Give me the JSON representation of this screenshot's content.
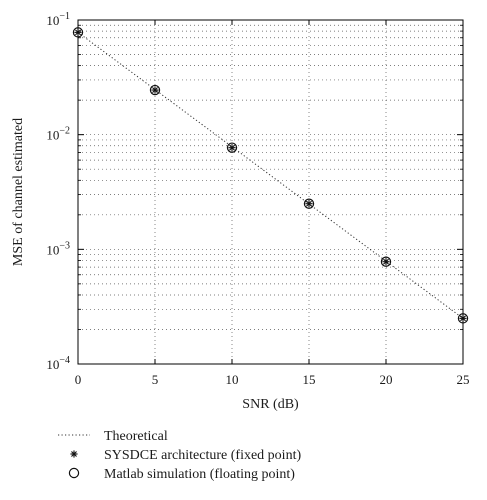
{
  "chart_data": {
    "type": "scatter",
    "title": "",
    "xlabel": "SNR (dB)",
    "ylabel": "MSE of channel estimated",
    "xlim": [
      0,
      25
    ],
    "ylim": [
      0.0001,
      0.1
    ],
    "yscale": "log",
    "grid": true,
    "x_ticks": [
      0,
      5,
      10,
      15,
      20,
      25
    ],
    "x_tick_labels": [
      "0",
      "5",
      "10",
      "15",
      "20",
      "25"
    ],
    "y_ticks": [
      0.0001,
      0.001,
      0.01,
      0.1
    ],
    "y_tick_labels": [
      {
        "base": "10",
        "exp": "−4"
      },
      {
        "base": "10",
        "exp": "−3"
      },
      {
        "base": "10",
        "exp": "−2"
      },
      {
        "base": "10",
        "exp": "−1"
      }
    ],
    "legend_placement": "below",
    "series": [
      {
        "name": "Theoretical",
        "style": "dotted-line",
        "color": "#333333",
        "x": [
          0,
          25
        ],
        "y": [
          0.078,
          0.00025
        ]
      },
      {
        "name": "SYSDCE architecture (fixed point)",
        "style": "asterisk",
        "color": "#111111",
        "x": [
          0,
          5,
          10,
          15,
          20,
          25
        ],
        "y": [
          0.078,
          0.0245,
          0.0077,
          0.0025,
          0.00078,
          0.00025
        ]
      },
      {
        "name": "Matlab simulation (floating point)",
        "style": "circle",
        "color": "#111111",
        "x": [
          0,
          5,
          10,
          15,
          20,
          25
        ],
        "y": [
          0.078,
          0.0245,
          0.0077,
          0.0025,
          0.00078,
          0.00025
        ]
      }
    ]
  }
}
